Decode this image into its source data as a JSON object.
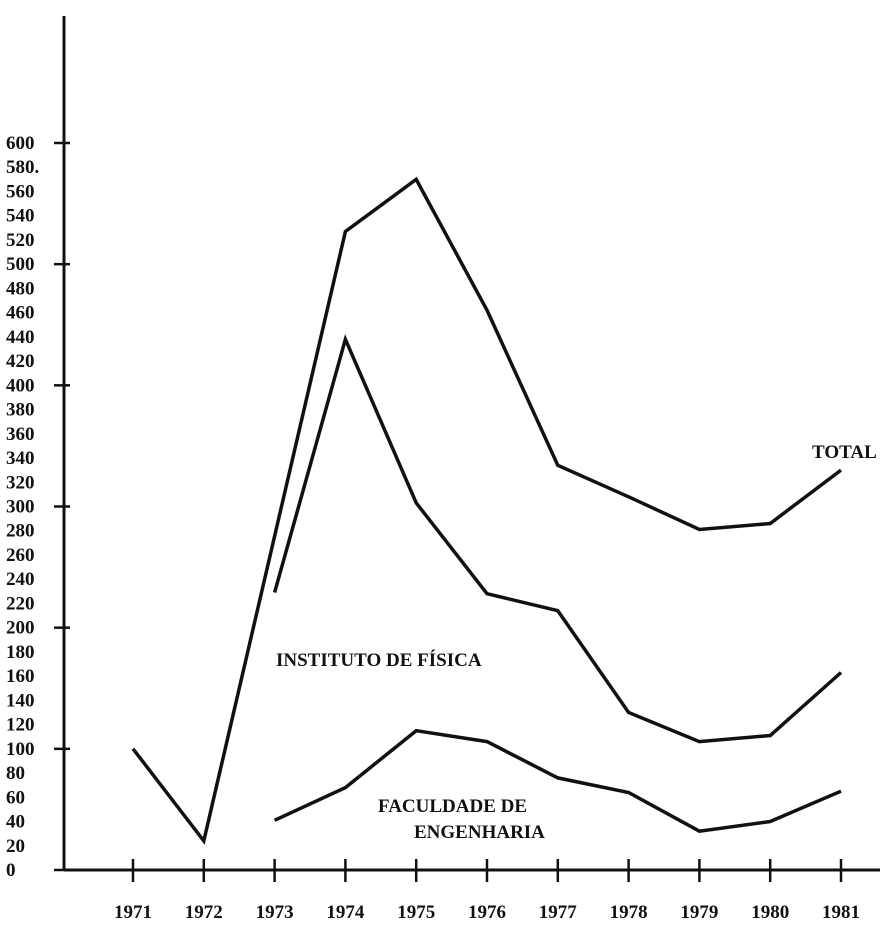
{
  "chart_data": {
    "type": "line",
    "title": "",
    "xlabel": "",
    "ylabel": "",
    "x": [
      "1971",
      "1972",
      "1973",
      "1974",
      "1975",
      "1976",
      "1977",
      "1978",
      "1979",
      "1980",
      "1981"
    ],
    "ylim": [
      0,
      600
    ],
    "y_ticks": [
      "0",
      "20",
      "40",
      "60",
      "80",
      "100",
      "120",
      "140",
      "160",
      "180",
      "200",
      "220",
      "240",
      "260",
      "280",
      "300",
      "320",
      "340",
      "360",
      "380",
      "400",
      "420",
      "440",
      "460",
      "480",
      "500",
      "520",
      "540",
      "560",
      "580.",
      "600"
    ],
    "grid": false,
    "series": [
      {
        "name": "TOTAL",
        "points": [
          {
            "x": "1971",
            "y": 100
          },
          {
            "x": "1972",
            "y": 24
          },
          {
            "x": "1974",
            "y": 527
          },
          {
            "x": "1975",
            "y": 570
          },
          {
            "x": "1976",
            "y": 462
          },
          {
            "x": "1977",
            "y": 334
          },
          {
            "x": "1978",
            "y": 308
          },
          {
            "x": "1979",
            "y": 281
          },
          {
            "x": "1980",
            "y": 286
          },
          {
            "x": "1981",
            "y": 330
          }
        ]
      },
      {
        "name": "INSTITUTO DE FÍSICA",
        "points": [
          {
            "x": "1973",
            "y": 229
          },
          {
            "x": "1974",
            "y": 438
          },
          {
            "x": "1975",
            "y": 303
          },
          {
            "x": "1976",
            "y": 228
          },
          {
            "x": "1977",
            "y": 214
          },
          {
            "x": "1978",
            "y": 130
          },
          {
            "x": "1979",
            "y": 106
          },
          {
            "x": "1980",
            "y": 111
          },
          {
            "x": "1981",
            "y": 163
          }
        ]
      },
      {
        "name": "FACULDADE DE ENGENHARIA",
        "name_lines": [
          "FACULDADE DE",
          "ENGENHARIA"
        ],
        "points": [
          {
            "x": "1973",
            "y": 41
          },
          {
            "x": "1974",
            "y": 68
          },
          {
            "x": "1975",
            "y": 115
          },
          {
            "x": "1976",
            "y": 106
          },
          {
            "x": "1977",
            "y": 76
          },
          {
            "x": "1978",
            "y": 64
          },
          {
            "x": "1979",
            "y": 32
          },
          {
            "x": "1980",
            "y": 40
          },
          {
            "x": "1981",
            "y": 65
          }
        ]
      }
    ]
  }
}
